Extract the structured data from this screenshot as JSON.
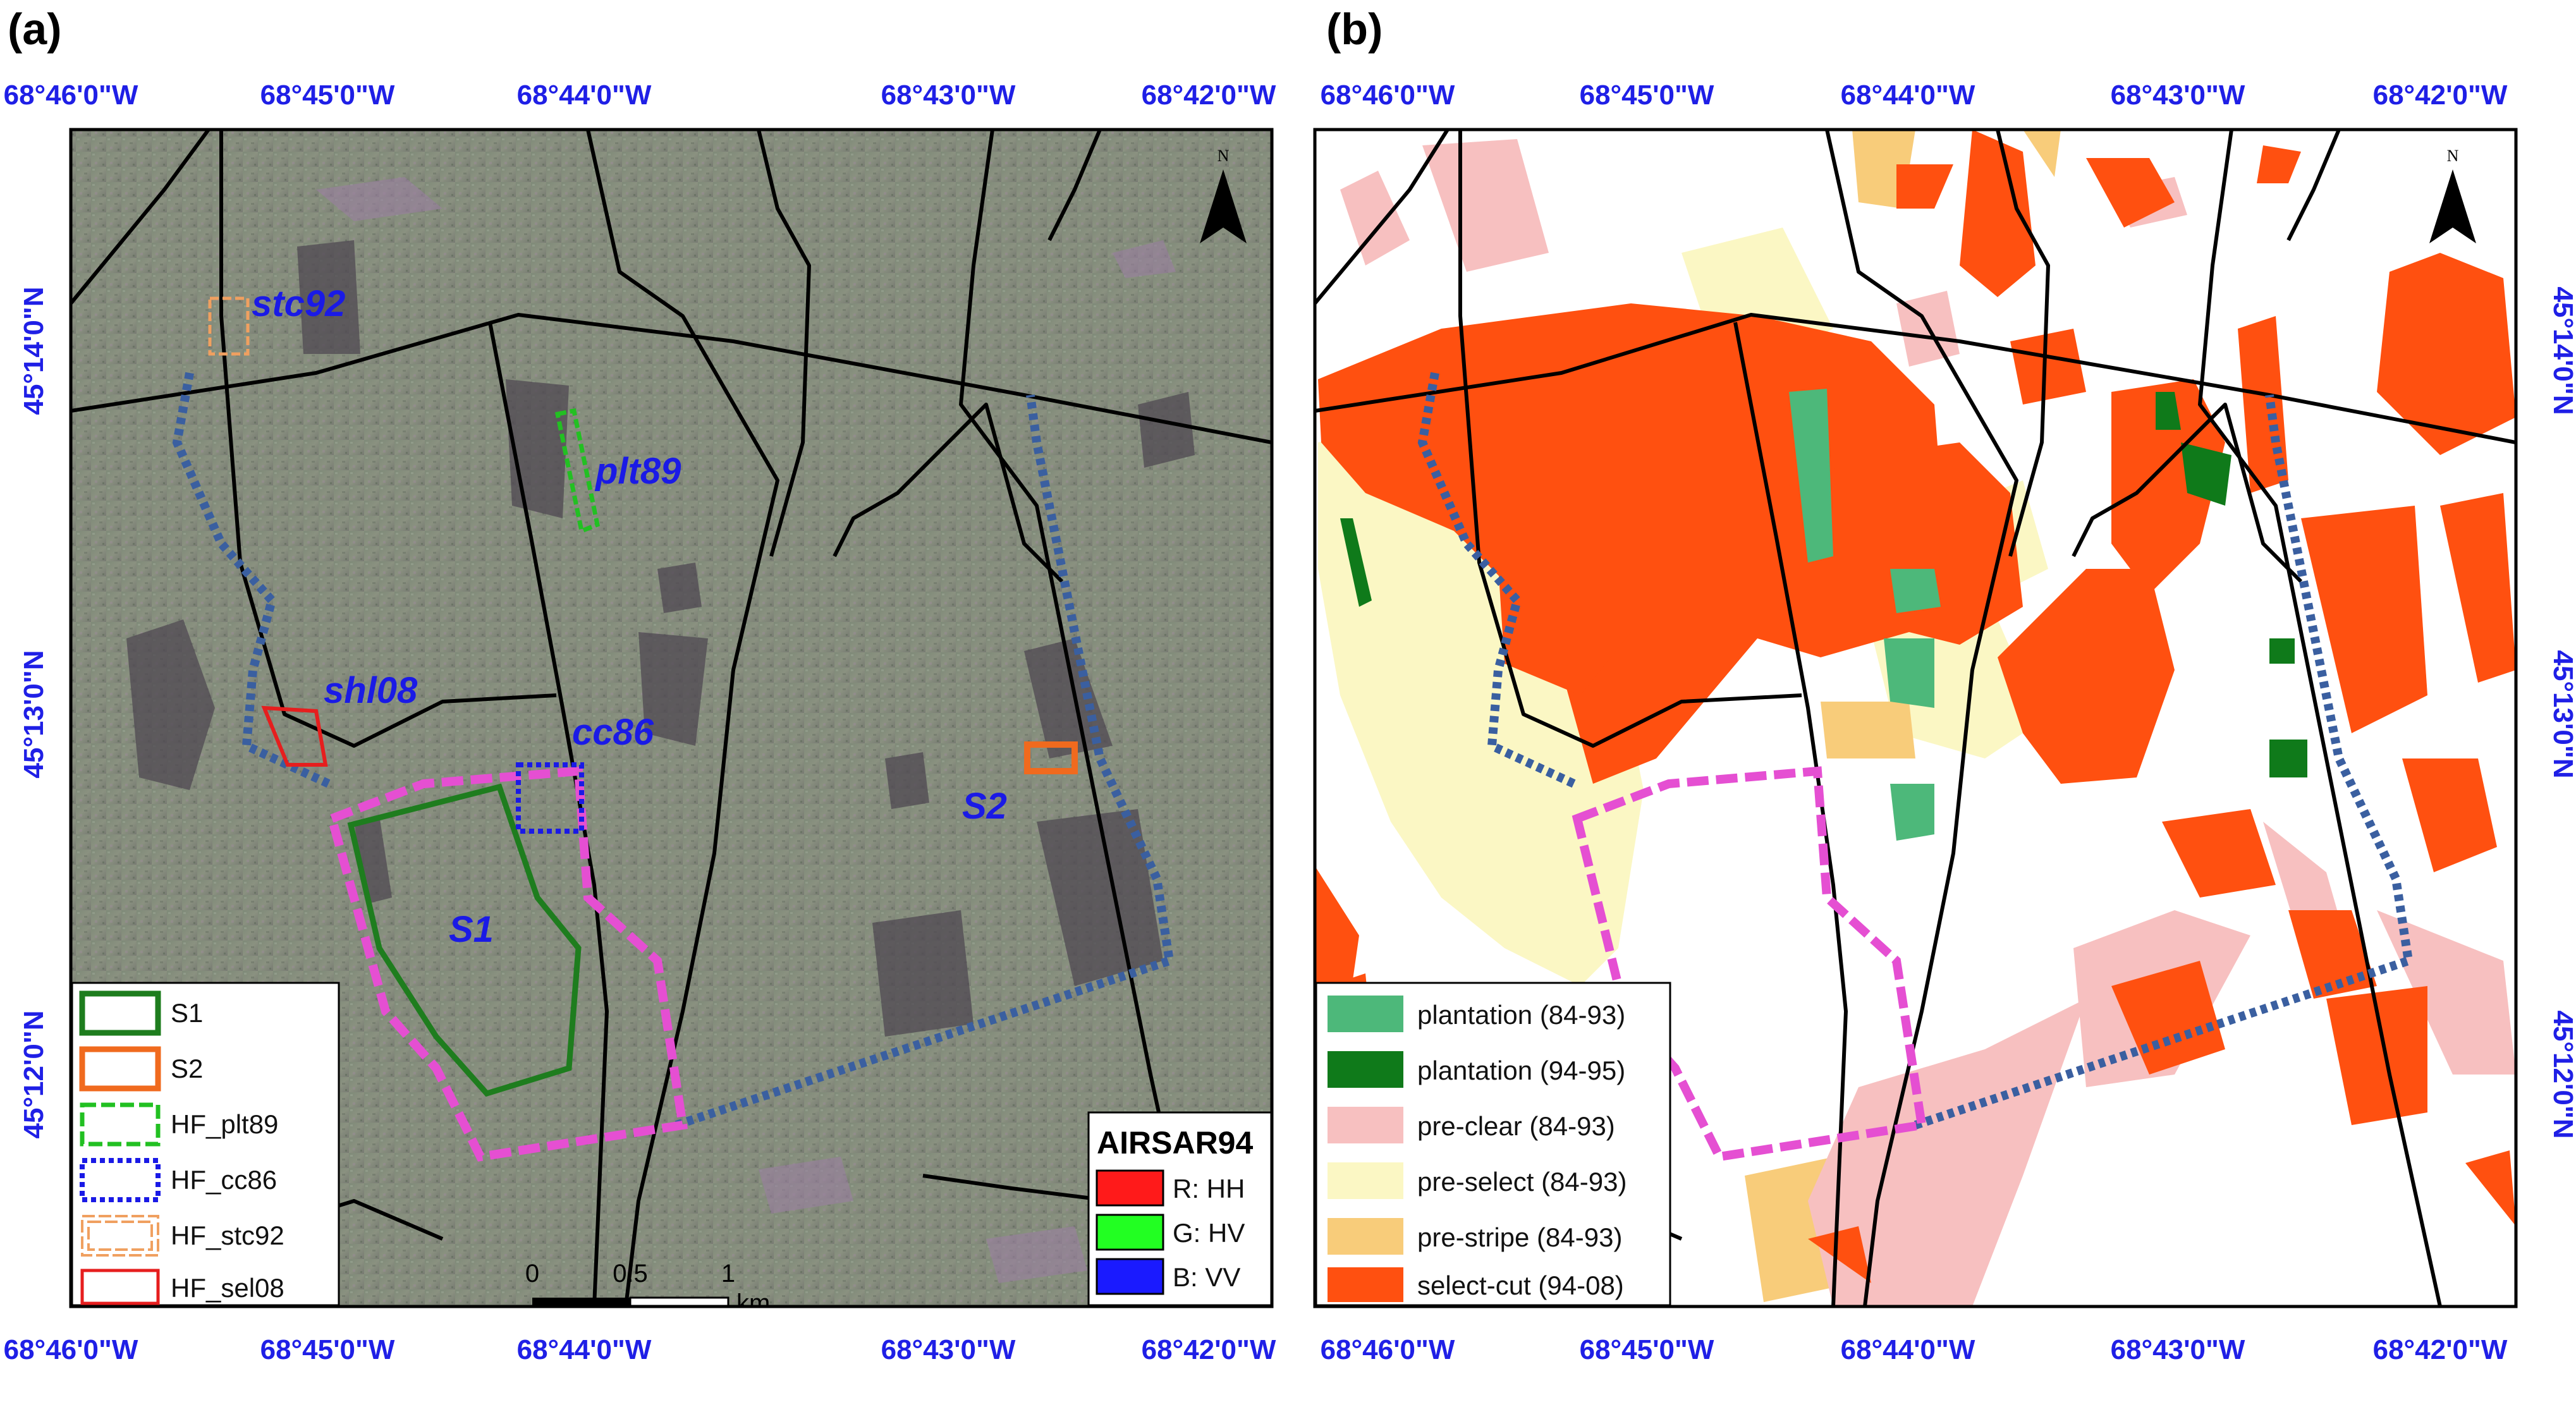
{
  "panels": [
    {
      "label": "(a)",
      "top_ticks": [
        "68°46'0\"W",
        "68°45'0\"W",
        "68°44'0\"W",
        "68°43'0\"W",
        "68°42'0\"W"
      ],
      "bottom_ticks": [
        "68°46'0\"W",
        "68°45'0\"W",
        "68°44'0\"W",
        "68°43'0\"W",
        "68°42'0\"W"
      ],
      "left_ticks": [
        "45°14'0\"N",
        "45°13'0\"N",
        "45°12'0\"N"
      ],
      "site_labels": [
        "stc92",
        "plt89",
        "shl08",
        "cc86",
        "S2",
        "S1"
      ],
      "legend": [
        {
          "label": "S1",
          "style": "solid",
          "color": "#1e7d1e"
        },
        {
          "label": "S2",
          "style": "solid",
          "color": "#f06a1e"
        },
        {
          "label": "HF_plt89",
          "style": "dashed",
          "color": "#22c022"
        },
        {
          "label": "HF_cc86",
          "style": "dotted",
          "color": "#1a1ae6"
        },
        {
          "label": "HF_stc92",
          "style": "double-dashed",
          "color": "#f0a060"
        },
        {
          "label": "HF_sel08",
          "style": "solid-thin",
          "color": "#e61e1e"
        }
      ],
      "composite_legend": {
        "title": "AIRSAR94",
        "items": [
          {
            "label": "R: HH",
            "color": "#ff1a1a"
          },
          {
            "label": "G: HV",
            "color": "#22ff22"
          },
          {
            "label": "B: VV",
            "color": "#1a1aff"
          }
        ]
      },
      "scalebar": {
        "ticks": [
          "0",
          "0.5",
          "1"
        ],
        "unit": "km"
      },
      "north": "N"
    },
    {
      "label": "(b)",
      "top_ticks": [
        "68°46'0\"W",
        "68°45'0\"W",
        "68°44'0\"W",
        "68°43'0\"W",
        "68°42'0\"W"
      ],
      "bottom_ticks": [
        "68°46'0\"W",
        "68°45'0\"W",
        "68°44'0\"W",
        "68°43'0\"W",
        "68°42'0\"W"
      ],
      "right_ticks": [
        "45°14'0\"N",
        "45°13'0\"N",
        "45°12'0\"N"
      ],
      "legend": [
        {
          "label": "plantation (84-93)",
          "color": "#4db87a"
        },
        {
          "label": "plantation (94-95)",
          "color": "#0f7a1a"
        },
        {
          "label": "pre-clear (84-93)",
          "color": "#f7c0c0"
        },
        {
          "label": "pre-select (84-93)",
          "color": "#fbf7c4"
        },
        {
          "label": "pre-stripe (84-93)",
          "color": "#f8cc7a"
        },
        {
          "label": "select-cut (94-08)",
          "color": "#ff5010"
        }
      ],
      "north": "N"
    }
  ]
}
